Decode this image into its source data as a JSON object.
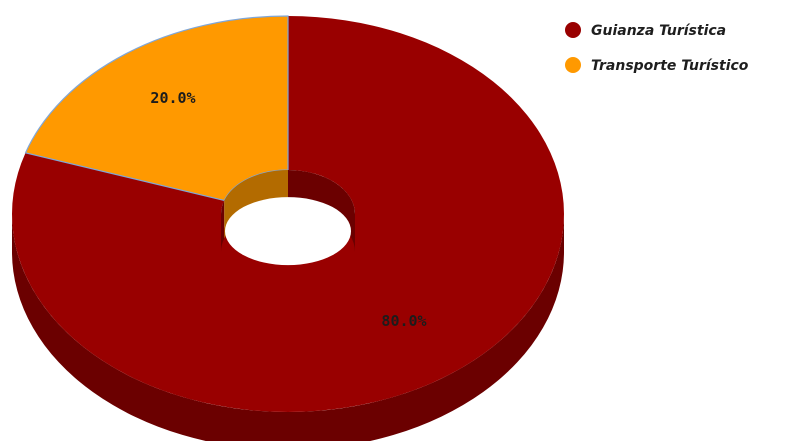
{
  "chart_data": {
    "type": "pie",
    "variant": "3d-donut",
    "title": "",
    "legend_position": "top-right",
    "series": [
      {
        "name": "Guianza Turística",
        "value": 80.0,
        "label": "80.0%",
        "color": "#990000",
        "side_color": "#6b0000"
      },
      {
        "name": "Transporte Turístico",
        "value": 20.0,
        "label": "20.0%",
        "color": "#ff9900",
        "side_color": "#b36b00"
      }
    ]
  }
}
